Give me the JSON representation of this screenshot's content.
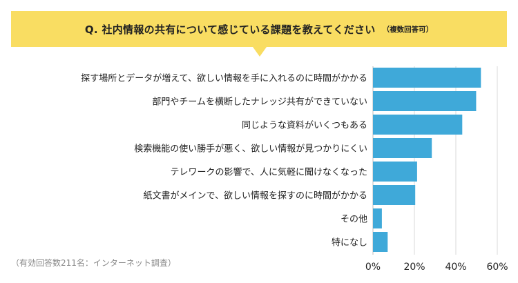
{
  "question": {
    "title": "Q. 社内情報の共有について感じている課題を教えてください",
    "note": "（複数回答可）"
  },
  "footnote": "（有効回答数211名：インターネット調査）",
  "colors": {
    "bar": "#3fa9d9",
    "banner": "#f9dd62",
    "grid": "#d9d9d9"
  },
  "chart_data": {
    "type": "bar",
    "orientation": "horizontal",
    "categories": [
      "探す場所とデータが増えて、欲しい情報を手に入れるのに時間がかかる",
      "部門やチームを横断したナレッジ共有ができていない",
      "同じような資料がいくつもある",
      "検索機能の使い勝手が悪く、欲しい情報が見つかりにくい",
      "テレワークの影響で、人に気軽に聞けなくなった",
      "紙文書がメインで、欲しい情報を探すのに時間がかかる",
      "その他",
      "特になし"
    ],
    "values": [
      52.1,
      49.8,
      43.1,
      28.4,
      21.3,
      20.4,
      4.3,
      7.1
    ],
    "xlim": [
      0,
      60
    ],
    "xticks": [
      "0%",
      "20%",
      "40%",
      "60%"
    ],
    "grid": true
  }
}
